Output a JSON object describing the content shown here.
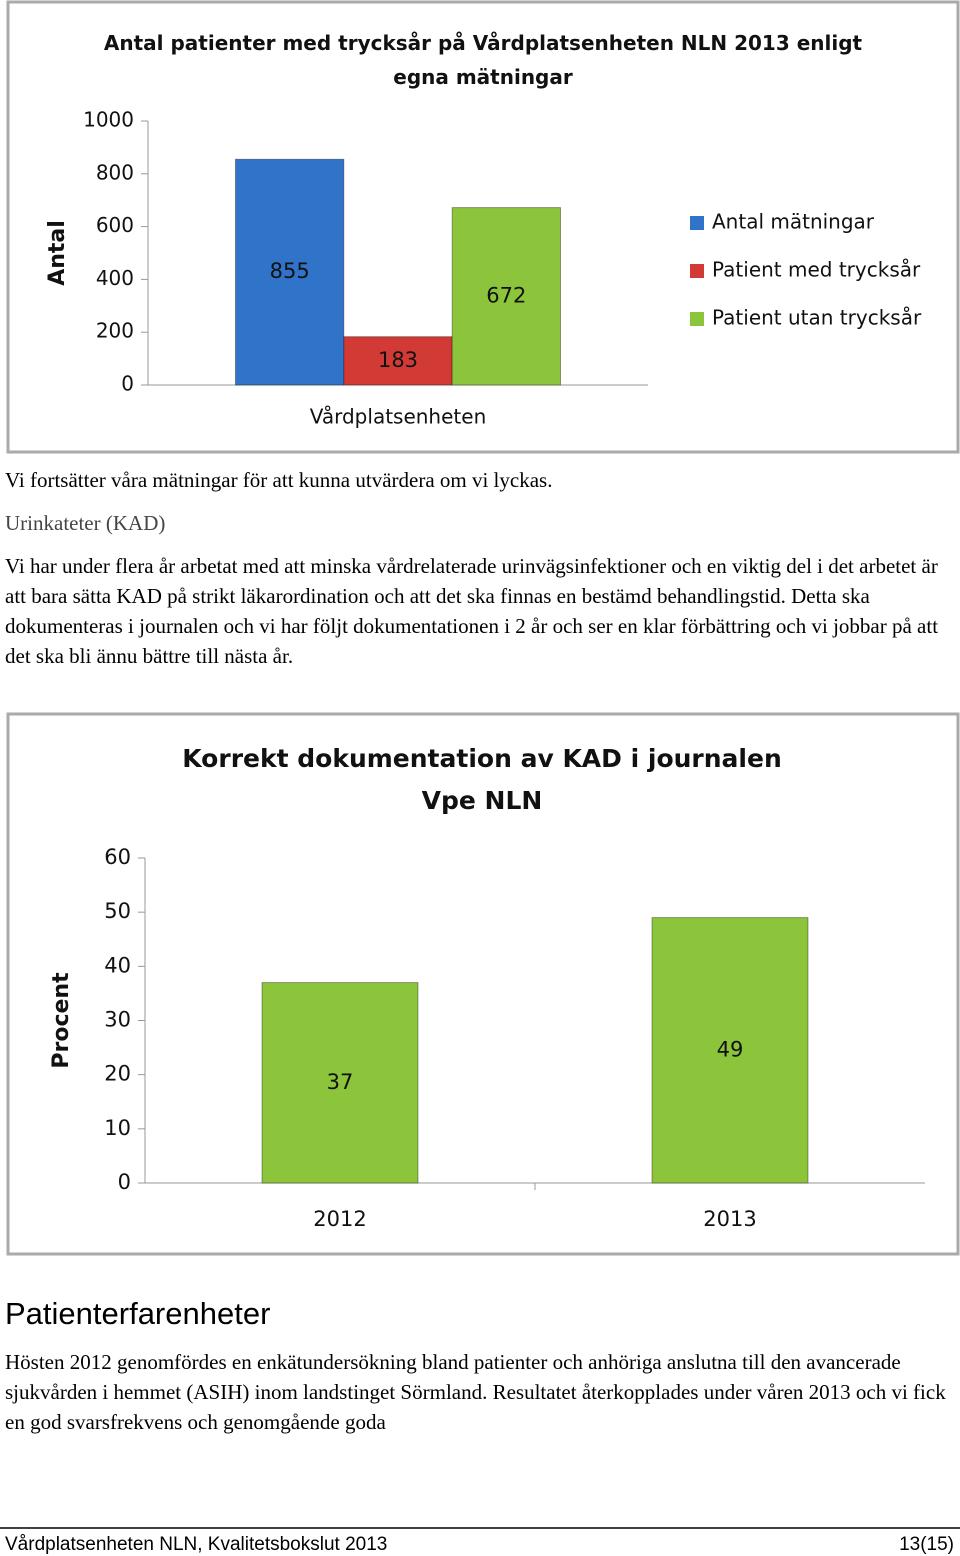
{
  "chart_data": [
    {
      "type": "bar",
      "title": "Antal patienter med trycksår på Vårdplatsenheten NLN 2013 enligt egna mätningar",
      "y_label": "Antal",
      "categories": [
        "Vårdplatsenheten"
      ],
      "series": [
        {
          "name": "Antal mätningar",
          "color": "#2f74c8",
          "values": [
            855
          ]
        },
        {
          "name": "Patient med trycksår",
          "color": "#d23a36",
          "values": [
            183
          ]
        },
        {
          "name": "Patient utan trycksår",
          "color": "#8cc43c",
          "values": [
            672
          ]
        }
      ],
      "ylim": [
        0,
        1000
      ],
      "yticks": [
        0,
        200,
        400,
        600,
        800,
        1000
      ],
      "grid": false,
      "legend": "right"
    },
    {
      "type": "bar",
      "title": "Korrekt dokumentation av KAD i journalen Vpe NLN",
      "y_label": "Procent",
      "categories": [
        "2012",
        "2013"
      ],
      "values": [
        37,
        49
      ],
      "color": "#8cc43c",
      "ylim": [
        0,
        60
      ],
      "yticks": [
        0,
        10,
        20,
        30,
        40,
        50,
        60
      ],
      "grid": false
    }
  ],
  "document": {
    "paragraphs": [
      "Vi fortsätter våra mätningar för att kunna utvärdera om vi lyckas.",
      "Urinkateter (KAD)",
      "Vi har under flera år arbetat med att minska vårdrelaterade urinvägsinfektioner och en viktig del i det arbetet är att bara sätta KAD på strikt läkarordination och att det ska finnas en bestämd behandlingstid. Detta ska dokumenteras i journalen och vi har följt dokumentationen i 2 år och ser en klar förbättring och vi jobbar på att det ska bli ännu bättre till nästa år."
    ],
    "heading": "Patienterfarenheter",
    "paragraph2": "Hösten 2012 genomfördes en enkätundersökning bland patienter och anhöriga anslutna till den avancerade sjukvården i hemmet (ASIH) inom landstinget Sörmland. Resultatet återkopplades under våren 2013 och vi fick en god svarsfrekvens och genomgående goda",
    "footer_left": "Vårdplatsenheten NLN, Kvalitetsbokslut 2013",
    "footer_right": "13(15)"
  }
}
